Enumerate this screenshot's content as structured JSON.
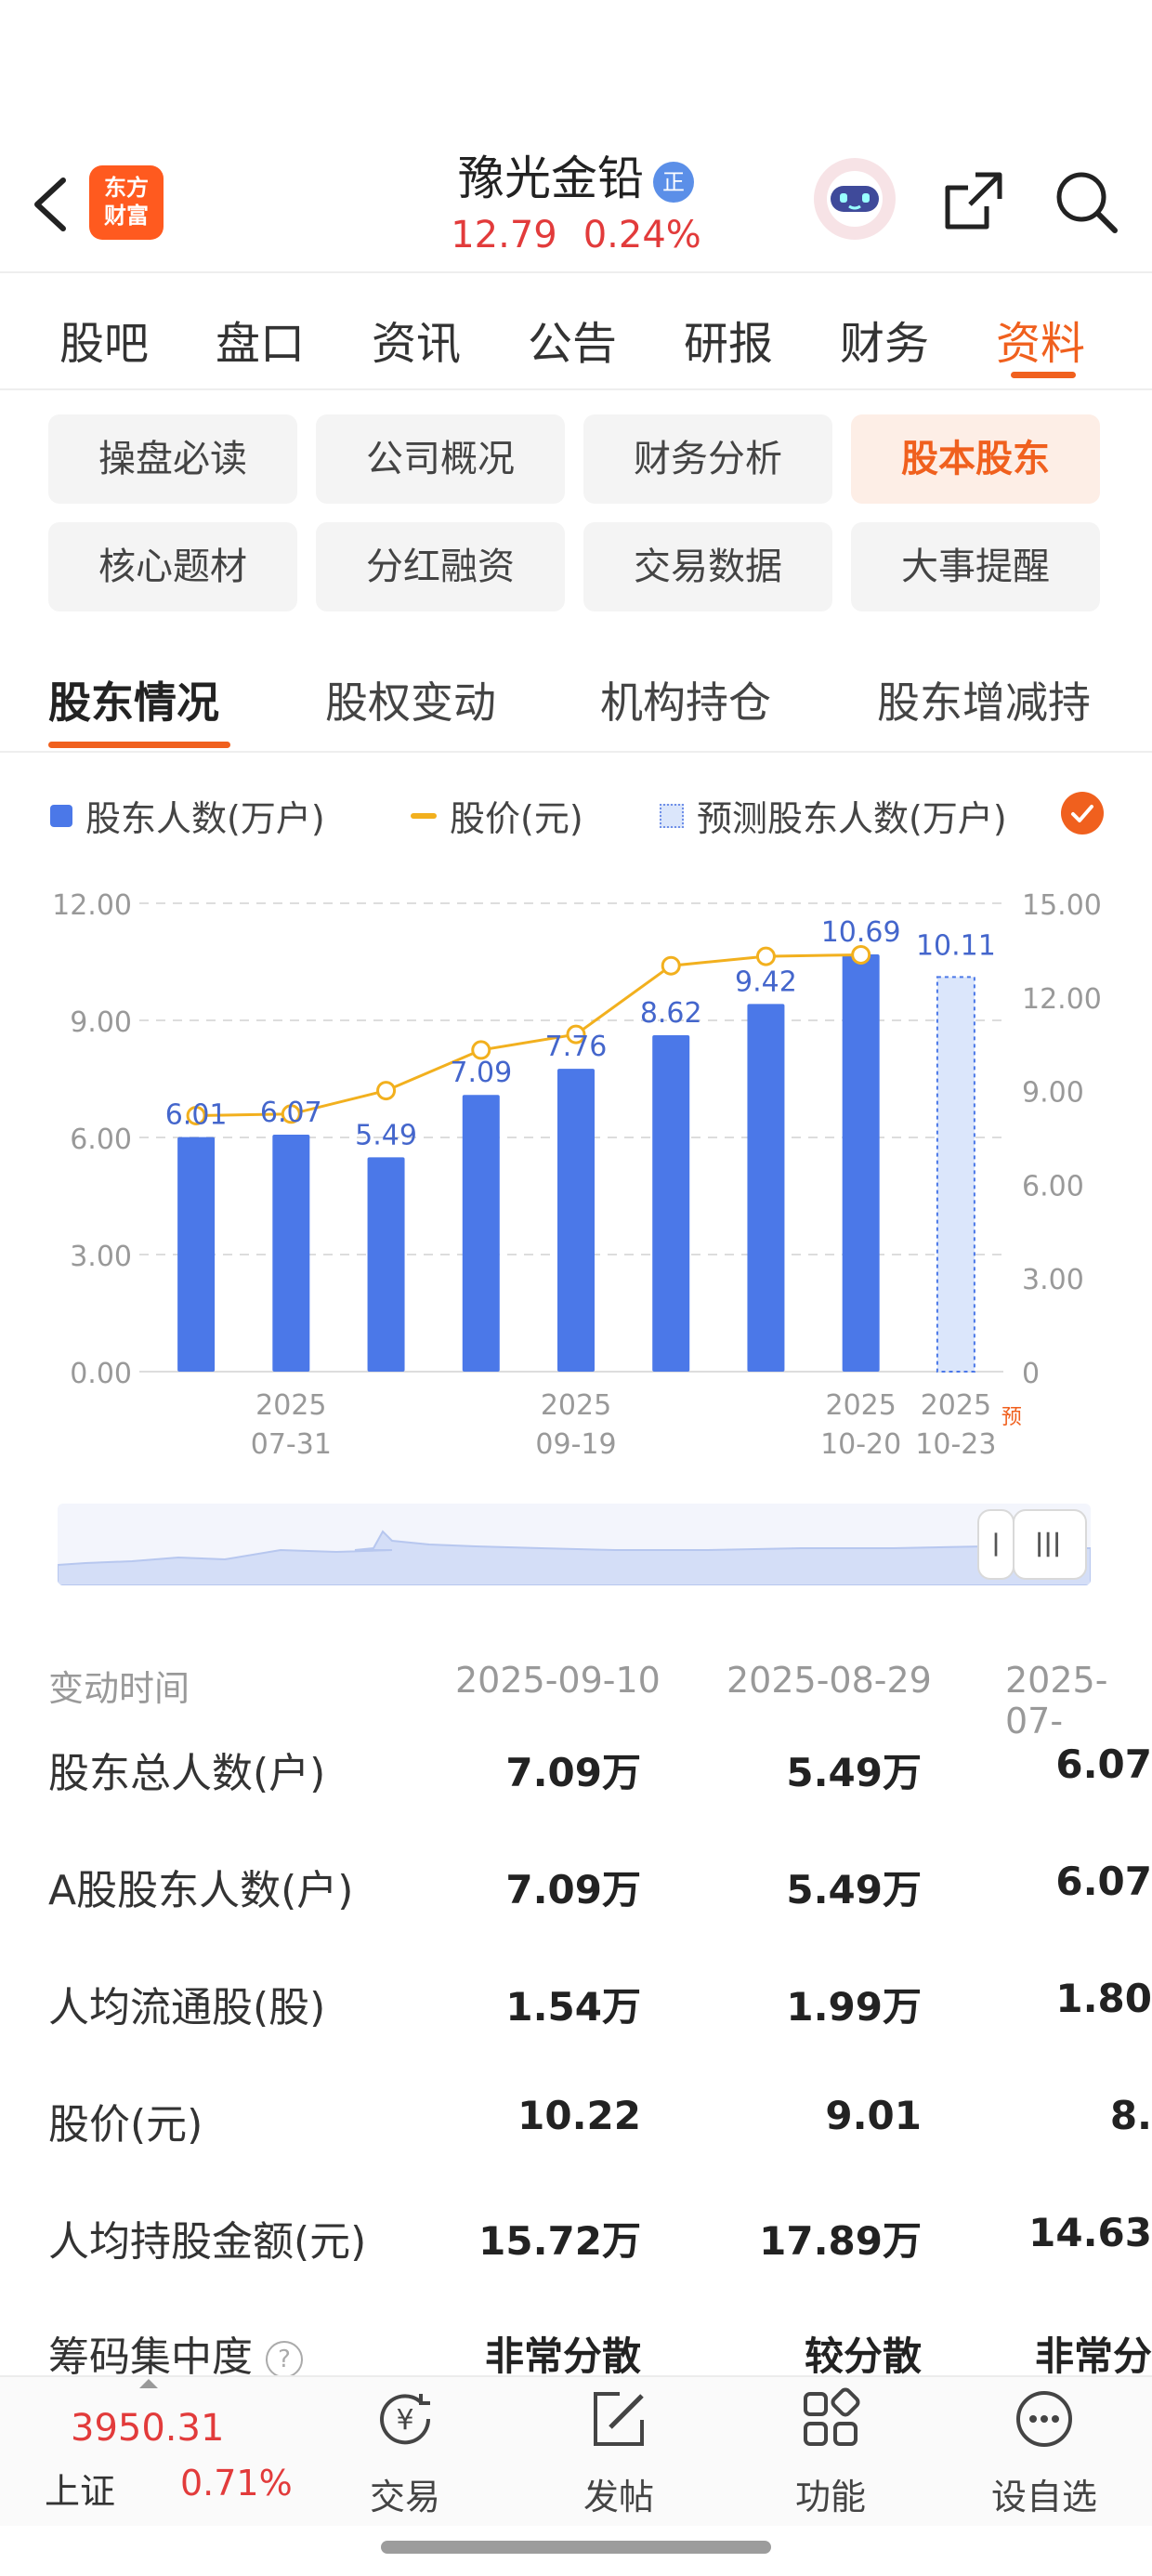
{
  "header": {
    "logo_text_line1": "东方",
    "logo_text_line2": "财富",
    "stock_name": "豫光金铅",
    "stock_badge": "正",
    "price": "12.79",
    "change_pct": "0.24%",
    "icons": [
      "back-icon",
      "robot-avatar-icon",
      "share-icon",
      "search-icon"
    ]
  },
  "main_tabs": [
    {
      "label": "股吧"
    },
    {
      "label": "盘口"
    },
    {
      "label": "资讯"
    },
    {
      "label": "公告"
    },
    {
      "label": "研报"
    },
    {
      "label": "财务"
    },
    {
      "label": "资料",
      "active": true
    }
  ],
  "chips": [
    {
      "label": "操盘必读"
    },
    {
      "label": "公司概况"
    },
    {
      "label": "财务分析"
    },
    {
      "label": "股本股东",
      "active": true
    },
    {
      "label": "核心题材"
    },
    {
      "label": "分红融资"
    },
    {
      "label": "交易数据"
    },
    {
      "label": "大事提醒"
    }
  ],
  "sub_tabs": [
    {
      "label": "股东情况",
      "active": true
    },
    {
      "label": "股权变动"
    },
    {
      "label": "机构持仓"
    },
    {
      "label": "股东增减持"
    }
  ],
  "legend": {
    "holders": "股东人数(万户)",
    "price": "股价(元)",
    "forecast": "预测股东人数(万户)"
  },
  "colors": {
    "accent": "#f0601e",
    "bar": "#4b78e8",
    "price_line": "#f2b01e",
    "up_red": "#e23b3b"
  },
  "chart_data": {
    "type": "bar",
    "categories": [
      "",
      "2025\n07-31",
      "",
      "",
      "2025\n09-19",
      "",
      "",
      "2025\n10-20",
      "2025\n10-23"
    ],
    "x_tick_labels": [
      {
        "index": 1,
        "line1": "2025",
        "line2": "07-31"
      },
      {
        "index": 4,
        "line1": "2025",
        "line2": "09-19"
      },
      {
        "index": 7,
        "line1": "2025",
        "line2": "10-20"
      },
      {
        "index": 8,
        "line1": "2025",
        "line2": "10-23"
      }
    ],
    "forecast_marker": "预",
    "series": [
      {
        "name": "股东人数(万户)",
        "type": "bar",
        "values": [
          6.01,
          6.07,
          5.49,
          7.09,
          7.76,
          8.62,
          9.42,
          10.69,
          null
        ],
        "labels": [
          "6.01",
          "6.07",
          "5.49",
          "7.09",
          "7.76",
          "8.62",
          "9.42",
          "10.69",
          ""
        ]
      },
      {
        "name": "预测股东人数(万户)",
        "type": "bar",
        "values": [
          null,
          null,
          null,
          null,
          null,
          null,
          null,
          null,
          10.11
        ],
        "labels": [
          "",
          "",
          "",
          "",
          "",
          "",
          "",
          "",
          "10.11"
        ]
      },
      {
        "name": "股价(元)",
        "type": "line",
        "axis": "right",
        "values": [
          8.2,
          8.25,
          9.0,
          10.3,
          10.8,
          13.0,
          13.3,
          13.35,
          null
        ]
      }
    ],
    "y_left": {
      "range": [
        0,
        12
      ],
      "ticks": [
        "0.00",
        "3.00",
        "6.00",
        "9.00",
        "12.00"
      ]
    },
    "y_right": {
      "range": [
        0,
        15
      ],
      "ticks": [
        "0",
        "3.00",
        "6.00",
        "9.00",
        "12.00",
        "15.00"
      ]
    },
    "grid": true
  },
  "table": {
    "header_label": "变动时间",
    "columns": [
      "2025-09-10",
      "2025-08-29",
      "2025-07-"
    ],
    "rows": [
      {
        "label": "股东总人数(户)",
        "values": [
          "7.09万",
          "5.49万",
          "6.07"
        ]
      },
      {
        "label": "A股股东人数(户)",
        "values": [
          "7.09万",
          "5.49万",
          "6.07"
        ]
      },
      {
        "label": "人均流通股(股)",
        "values": [
          "1.54万",
          "1.99万",
          "1.80"
        ]
      },
      {
        "label": "股价(元)",
        "values": [
          "10.22",
          "9.01",
          "8."
        ]
      },
      {
        "label": "人均持股金额(元)",
        "values": [
          "15.72万",
          "17.89万",
          "14.63"
        ]
      },
      {
        "label": "筹码集中度",
        "values": [
          "非常分散",
          "较分散",
          "非常分"
        ],
        "help": "?"
      }
    ]
  },
  "bottom_bar": {
    "index_value": "3950.31",
    "index_name": "上证",
    "index_pct": "0.71%",
    "nav": [
      {
        "label": "交易",
        "icon": "yen-cycle-icon"
      },
      {
        "label": "发帖",
        "icon": "edit-icon"
      },
      {
        "label": "功能",
        "icon": "grid-icon"
      },
      {
        "label": "设自选",
        "icon": "more-icon"
      }
    ]
  }
}
